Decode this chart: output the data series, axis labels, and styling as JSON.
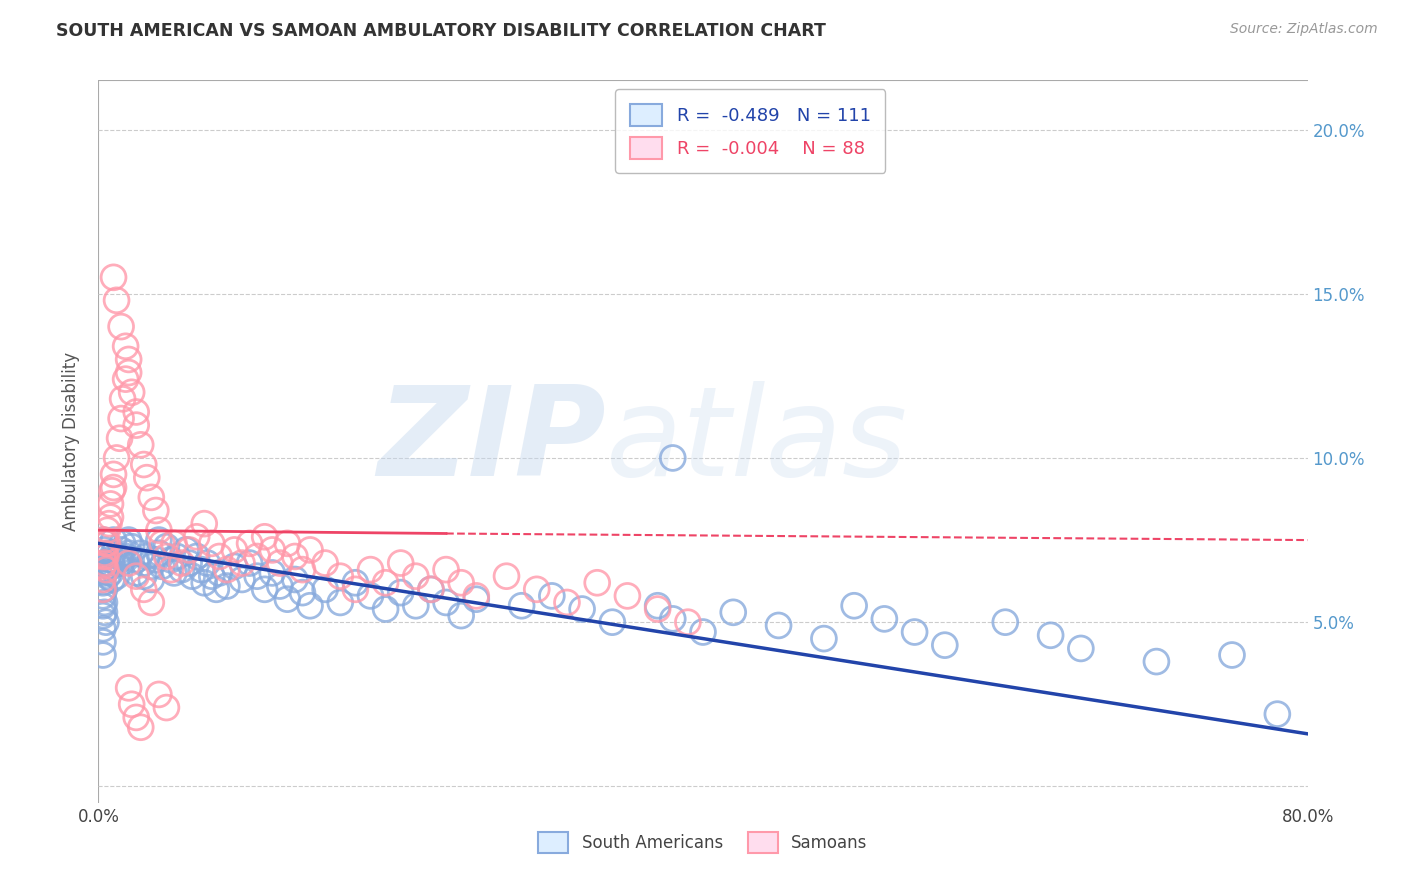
{
  "title": "SOUTH AMERICAN VS SAMOAN AMBULATORY DISABILITY CORRELATION CHART",
  "source": "Source: ZipAtlas.com",
  "ylabel": "Ambulatory Disability",
  "watermark": "ZIPatlas",
  "xlim": [
    0,
    0.8
  ],
  "ylim": [
    -0.005,
    0.215
  ],
  "blue_R": "-0.489",
  "blue_N": "111",
  "pink_R": "-0.004",
  "pink_N": "88",
  "blue_color": "#88AADD",
  "pink_color": "#FF99AA",
  "blue_line_color": "#2244AA",
  "pink_line_color": "#EE4466",
  "legend_label_blue": "South Americans",
  "legend_label_pink": "Samoans",
  "background_color": "#ffffff",
  "grid_color": "#cccccc",
  "title_color": "#333333",
  "source_color": "#999999",
  "blue_scatter_x": [
    0.003,
    0.003,
    0.003,
    0.003,
    0.003,
    0.003,
    0.003,
    0.003,
    0.003,
    0.003,
    0.004,
    0.004,
    0.004,
    0.004,
    0.004,
    0.004,
    0.005,
    0.005,
    0.005,
    0.005,
    0.006,
    0.006,
    0.007,
    0.007,
    0.008,
    0.008,
    0.009,
    0.009,
    0.01,
    0.01,
    0.012,
    0.012,
    0.014,
    0.015,
    0.015,
    0.016,
    0.018,
    0.02,
    0.02,
    0.022,
    0.025,
    0.025,
    0.028,
    0.03,
    0.03,
    0.032,
    0.035,
    0.035,
    0.038,
    0.04,
    0.04,
    0.042,
    0.045,
    0.048,
    0.05,
    0.052,
    0.055,
    0.058,
    0.06,
    0.062,
    0.065,
    0.068,
    0.07,
    0.072,
    0.075,
    0.078,
    0.08,
    0.085,
    0.09,
    0.095,
    0.1,
    0.105,
    0.11,
    0.115,
    0.12,
    0.125,
    0.13,
    0.135,
    0.14,
    0.15,
    0.16,
    0.17,
    0.18,
    0.19,
    0.2,
    0.21,
    0.22,
    0.23,
    0.24,
    0.25,
    0.28,
    0.3,
    0.32,
    0.34,
    0.37,
    0.38,
    0.4,
    0.42,
    0.45,
    0.48,
    0.5,
    0.52,
    0.54,
    0.56,
    0.6,
    0.63,
    0.65,
    0.7,
    0.75,
    0.78,
    0.38
  ],
  "blue_scatter_y": [
    0.075,
    0.07,
    0.066,
    0.062,
    0.058,
    0.055,
    0.052,
    0.048,
    0.044,
    0.04,
    0.072,
    0.068,
    0.065,
    0.06,
    0.056,
    0.053,
    0.074,
    0.07,
    0.066,
    0.05,
    0.068,
    0.064,
    0.071,
    0.067,
    0.069,
    0.065,
    0.067,
    0.063,
    0.075,
    0.071,
    0.068,
    0.064,
    0.07,
    0.072,
    0.068,
    0.074,
    0.07,
    0.075,
    0.071,
    0.073,
    0.069,
    0.065,
    0.071,
    0.068,
    0.064,
    0.07,
    0.067,
    0.063,
    0.069,
    0.075,
    0.071,
    0.067,
    0.073,
    0.069,
    0.065,
    0.07,
    0.066,
    0.072,
    0.068,
    0.064,
    0.07,
    0.066,
    0.062,
    0.068,
    0.064,
    0.06,
    0.065,
    0.061,
    0.067,
    0.063,
    0.068,
    0.064,
    0.06,
    0.065,
    0.061,
    0.057,
    0.063,
    0.059,
    0.055,
    0.06,
    0.056,
    0.062,
    0.058,
    0.054,
    0.059,
    0.055,
    0.06,
    0.056,
    0.052,
    0.057,
    0.055,
    0.058,
    0.054,
    0.05,
    0.055,
    0.051,
    0.047,
    0.053,
    0.049,
    0.045,
    0.055,
    0.051,
    0.047,
    0.043,
    0.05,
    0.046,
    0.042,
    0.038,
    0.04,
    0.022,
    0.1
  ],
  "pink_scatter_x": [
    0.003,
    0.003,
    0.003,
    0.003,
    0.004,
    0.004,
    0.004,
    0.005,
    0.005,
    0.005,
    0.006,
    0.006,
    0.007,
    0.008,
    0.008,
    0.009,
    0.01,
    0.01,
    0.012,
    0.014,
    0.015,
    0.016,
    0.018,
    0.02,
    0.02,
    0.022,
    0.025,
    0.025,
    0.028,
    0.03,
    0.032,
    0.035,
    0.038,
    0.04,
    0.042,
    0.045,
    0.048,
    0.05,
    0.055,
    0.06,
    0.065,
    0.07,
    0.075,
    0.08,
    0.085,
    0.09,
    0.095,
    0.1,
    0.105,
    0.11,
    0.115,
    0.12,
    0.125,
    0.13,
    0.135,
    0.14,
    0.15,
    0.16,
    0.17,
    0.18,
    0.19,
    0.2,
    0.21,
    0.22,
    0.23,
    0.24,
    0.25,
    0.27,
    0.29,
    0.31,
    0.33,
    0.35,
    0.37,
    0.39,
    0.02,
    0.025,
    0.03,
    0.035,
    0.04,
    0.045,
    0.01,
    0.012,
    0.015,
    0.018,
    0.02,
    0.022,
    0.025,
    0.028
  ],
  "pink_scatter_y": [
    0.07,
    0.067,
    0.063,
    0.06,
    0.075,
    0.071,
    0.068,
    0.074,
    0.07,
    0.066,
    0.078,
    0.074,
    0.08,
    0.086,
    0.082,
    0.09,
    0.095,
    0.091,
    0.1,
    0.106,
    0.112,
    0.118,
    0.124,
    0.13,
    0.126,
    0.12,
    0.114,
    0.11,
    0.104,
    0.098,
    0.094,
    0.088,
    0.084,
    0.078,
    0.074,
    0.07,
    0.066,
    0.074,
    0.068,
    0.072,
    0.076,
    0.08,
    0.074,
    0.07,
    0.066,
    0.072,
    0.068,
    0.074,
    0.07,
    0.076,
    0.072,
    0.068,
    0.074,
    0.07,
    0.066,
    0.072,
    0.068,
    0.064,
    0.06,
    0.066,
    0.062,
    0.068,
    0.064,
    0.06,
    0.066,
    0.062,
    0.058,
    0.064,
    0.06,
    0.056,
    0.062,
    0.058,
    0.054,
    0.05,
    0.068,
    0.064,
    0.06,
    0.056,
    0.028,
    0.024,
    0.155,
    0.148,
    0.14,
    0.134,
    0.03,
    0.025,
    0.021,
    0.018
  ],
  "blue_trendline_x": [
    0.0,
    0.8
  ],
  "blue_trendline_y": [
    0.074,
    0.016
  ],
  "pink_trendline_x": [
    0.0,
    0.8
  ],
  "pink_trendline_y": [
    0.078,
    0.075
  ]
}
